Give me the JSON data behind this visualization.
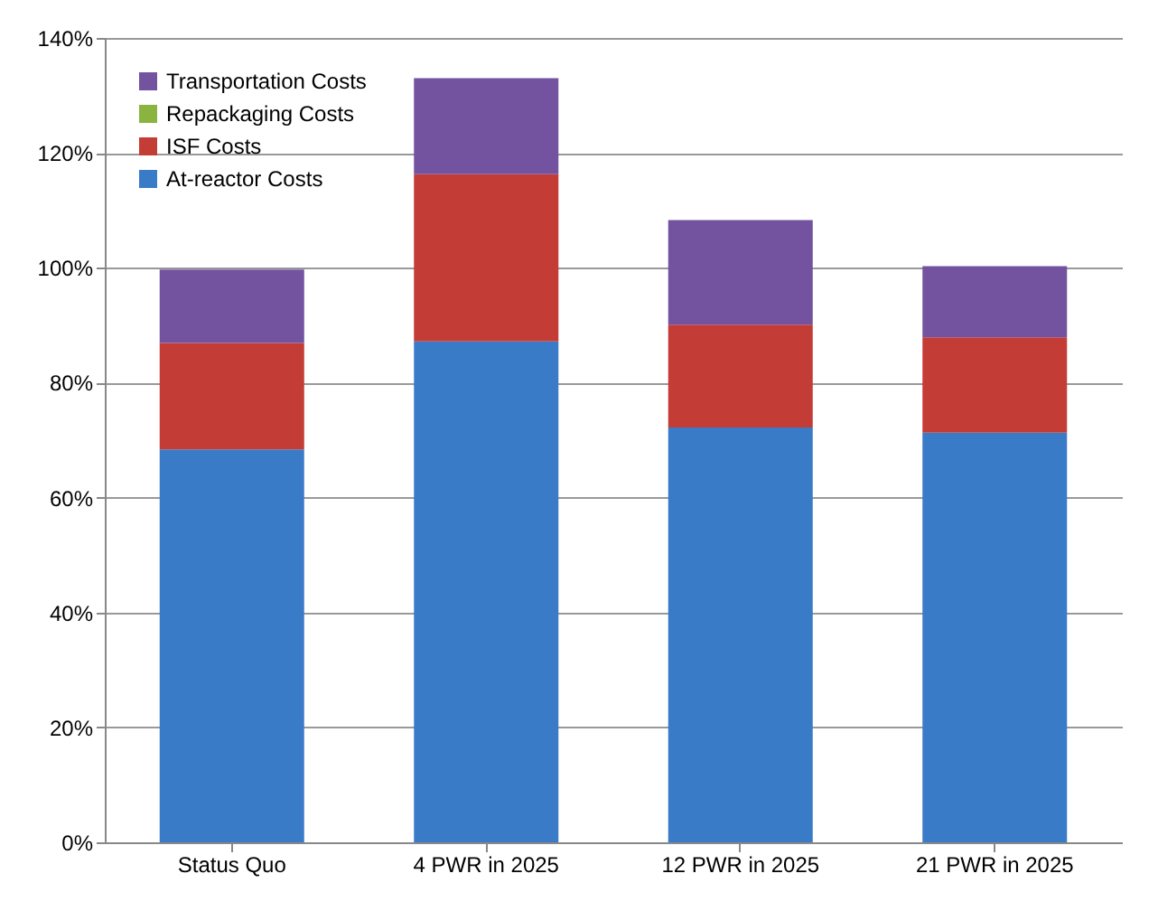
{
  "chart_data": {
    "type": "bar",
    "stacked": true,
    "categories": [
      "Status Quo",
      "4 PWR in 2025",
      "12 PWR in 2025",
      "21 PWR in 2025"
    ],
    "series": [
      {
        "name": "At-reactor Costs",
        "color": "#3a7bc8",
        "values": [
          68.4,
          87.2,
          72.2,
          71.3
        ]
      },
      {
        "name": "ISF Costs",
        "color": "#c43c36",
        "values": [
          18.5,
          29.1,
          17.9,
          16.6
        ]
      },
      {
        "name": "Repackaging Costs",
        "color": "#8ab33f",
        "values": [
          0,
          0,
          0,
          0
        ]
      },
      {
        "name": "Transportation Costs",
        "color": "#7352a0",
        "values": [
          12.8,
          16.7,
          18.2,
          12.4
        ]
      }
    ],
    "ylim": [
      0,
      140
    ],
    "yticks": [
      {
        "value": 0,
        "label": "0%"
      },
      {
        "value": 20,
        "label": "20%"
      },
      {
        "value": 40,
        "label": "40%"
      },
      {
        "value": 60,
        "label": "60%"
      },
      {
        "value": 80,
        "label": "80%"
      },
      {
        "value": 100,
        "label": "100%"
      },
      {
        "value": 120,
        "label": "120%"
      },
      {
        "value": 140,
        "label": "140%"
      }
    ],
    "grid": "y",
    "legend": "top left"
  }
}
